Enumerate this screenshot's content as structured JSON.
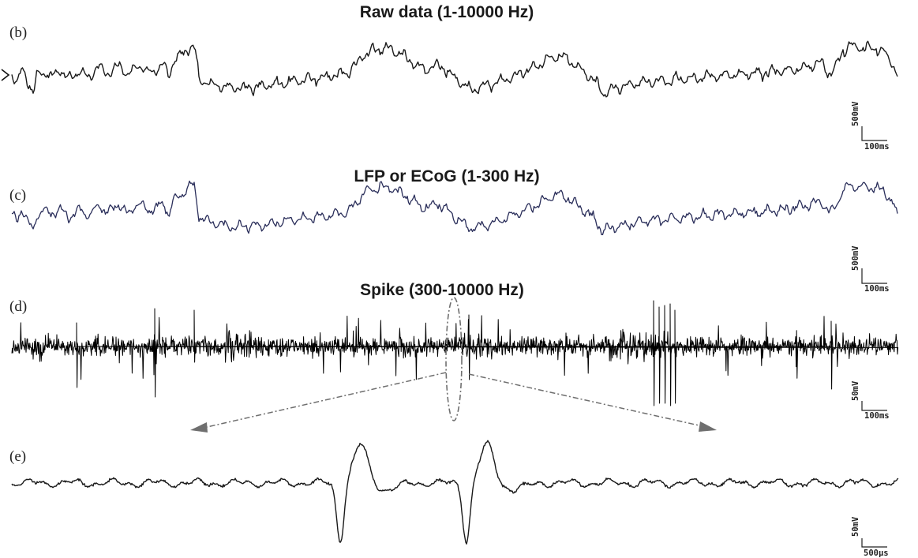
{
  "figure": {
    "panels": [
      {
        "id": "b",
        "letter": "(b)",
        "title": "Raw data (1-10000 Hz)",
        "trace_color": "#1a1a1a",
        "scale_y": "500mV",
        "scale_x": "100ms"
      },
      {
        "id": "c",
        "letter": "(c)",
        "title": "LFP or ECoG (1-300 Hz)",
        "trace_color": "#2a2e5a",
        "scale_y": "500mV",
        "scale_x": "100ms"
      },
      {
        "id": "d",
        "letter": "(d)",
        "title": "Spike (300-10000 Hz)",
        "trace_color": "#000000",
        "scale_y": "50mV",
        "scale_x": "100ms"
      },
      {
        "id": "e",
        "letter": "(e)",
        "title": "",
        "trace_color": "#1a1a1a",
        "scale_y": "50mV",
        "scale_x": "500µs"
      }
    ],
    "zoom_annotation": {
      "style": "dash-dot",
      "color": "#777777"
    }
  }
}
